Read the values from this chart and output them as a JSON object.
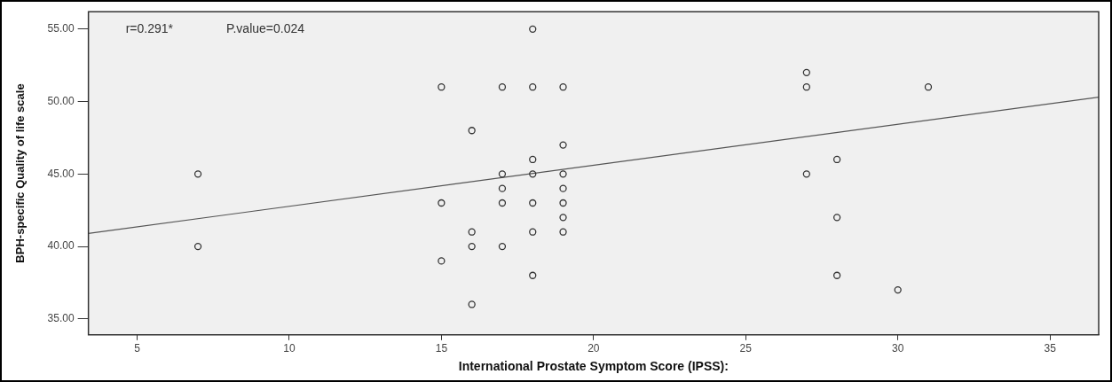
{
  "chart_data": {
    "type": "scatter",
    "xlabel": "International Prostate Symptom Score (IPSS):",
    "ylabel": "BPH-specific Quality of life scale",
    "annotations": [
      "r=0.291*",
      "P.value=0.024"
    ],
    "series": [
      {
        "type": "scatter",
        "color": "#333333",
        "marker": "circle",
        "x": [
          7,
          7,
          15,
          15,
          15,
          16,
          16,
          16,
          16,
          17,
          17,
          17,
          17,
          17,
          18,
          18,
          18,
          18,
          18,
          18,
          18,
          19,
          19,
          19,
          19,
          19,
          19,
          19,
          27,
          27,
          27,
          28,
          28,
          28,
          30,
          31
        ],
        "values": [
          45,
          40,
          51,
          43,
          39,
          48,
          41,
          40,
          36,
          51,
          45,
          44,
          43,
          40,
          55,
          51,
          46,
          45,
          43,
          41,
          38,
          51,
          47,
          45,
          44,
          43,
          42,
          41,
          52,
          51,
          45,
          46,
          42,
          38,
          37,
          51
        ]
      },
      {
        "type": "line",
        "color": "#555555",
        "marker": "none",
        "x": [
          3.4,
          36.6
        ],
        "values": [
          40.9,
          50.3
        ]
      }
    ],
    "xlim": [
      3.4,
      36.6
    ],
    "ylim": [
      33.9,
      56.2
    ],
    "xticks": [
      5,
      10,
      15,
      20,
      25,
      30,
      35
    ],
    "yticks": [
      {
        "value": 35,
        "label": "35.00"
      },
      {
        "value": 40,
        "label": "40.00"
      },
      {
        "value": 45,
        "label": "45.00"
      },
      {
        "value": 50,
        "label": "50.00"
      },
      {
        "value": 55,
        "label": "55.00"
      }
    ],
    "grid": false,
    "legend": false
  }
}
